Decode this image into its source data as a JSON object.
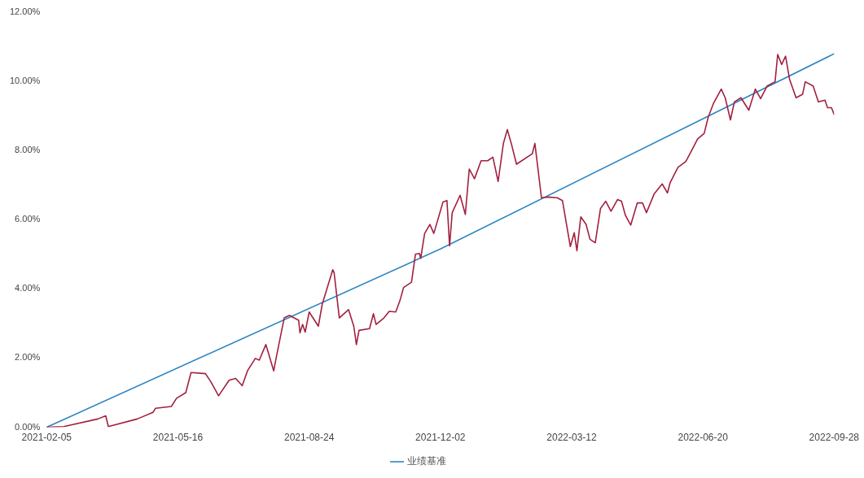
{
  "chart_data": {
    "type": "line",
    "legend": "bottom",
    "grid": false,
    "marker": "none",
    "line_style": "solid",
    "xlim": [
      "2021-02-05",
      "2022-09-28"
    ],
    "xticks": [
      "2021-02-05",
      "2021-05-16",
      "2021-08-24",
      "2021-12-02",
      "2022-03-12",
      "2022-06-20",
      "2022-09-28"
    ],
    "ylim": [
      0,
      12
    ],
    "yticks": [
      {
        "value": 0,
        "label": "0.00%"
      },
      {
        "value": 2,
        "label": "2.00%"
      },
      {
        "value": 4,
        "label": "4.00%"
      },
      {
        "value": 6,
        "label": "6.00%"
      },
      {
        "value": 8,
        "label": "8.00%"
      },
      {
        "value": 10,
        "label": "10.00%"
      },
      {
        "value": 12,
        "label": "12.00%"
      }
    ],
    "series": [
      {
        "color": "#a3203f",
        "x": [
          "2021-02-05",
          "2021-02-18",
          "2021-03-16",
          "2021-03-22",
          "2021-03-24",
          "2021-04-15",
          "2021-04-27",
          "2021-04-29",
          "2021-05-11",
          "2021-05-15",
          "2021-05-22",
          "2021-05-26",
          "2021-06-06",
          "2021-06-10",
          "2021-06-16",
          "2021-06-24",
          "2021-06-29",
          "2021-07-04",
          "2021-07-08",
          "2021-07-14",
          "2021-07-17",
          "2021-07-22",
          "2021-07-28",
          "2021-07-30",
          "2021-08-05",
          "2021-08-09",
          "2021-08-16",
          "2021-08-17",
          "2021-08-19",
          "2021-08-21",
          "2021-08-24",
          "2021-08-31",
          "2021-09-03",
          "2021-09-11",
          "2021-09-12",
          "2021-09-16",
          "2021-09-23",
          "2021-09-27",
          "2021-09-29",
          "2021-10-01",
          "2021-10-09",
          "2021-10-12",
          "2021-10-14",
          "2021-10-20",
          "2021-10-24",
          "2021-10-29",
          "2021-11-01",
          "2021-11-04",
          "2021-11-10",
          "2021-11-13",
          "2021-11-16",
          "2021-11-17",
          "2021-11-20",
          "2021-11-24",
          "2021-11-27",
          "2021-12-04",
          "2021-12-07",
          "2021-12-09",
          "2021-12-11",
          "2021-12-17",
          "2021-12-21",
          "2021-12-24",
          "2021-12-28",
          "2022-01-02",
          "2022-01-07",
          "2022-01-11",
          "2022-01-15",
          "2022-01-19",
          "2022-01-22",
          "2022-01-25",
          "2022-01-29",
          "2022-02-10",
          "2022-02-12",
          "2022-02-17",
          "2022-02-22",
          "2022-03-01",
          "2022-03-05",
          "2022-03-11",
          "2022-03-14",
          "2022-03-16",
          "2022-03-19",
          "2022-03-23",
          "2022-03-26",
          "2022-03-30",
          "2022-04-03",
          "2022-04-07",
          "2022-04-11",
          "2022-04-16",
          "2022-04-19",
          "2022-04-22",
          "2022-04-26",
          "2022-05-01",
          "2022-05-05",
          "2022-05-08",
          "2022-05-14",
          "2022-05-20",
          "2022-05-24",
          "2022-05-26",
          "2022-06-01",
          "2022-06-07",
          "2022-06-10",
          "2022-06-16",
          "2022-06-21",
          "2022-06-24",
          "2022-06-28",
          "2022-07-04",
          "2022-07-07",
          "2022-07-11",
          "2022-07-14",
          "2022-07-19",
          "2022-07-25",
          "2022-07-30",
          "2022-08-03",
          "2022-08-08",
          "2022-08-14",
          "2022-08-16",
          "2022-08-19",
          "2022-08-22",
          "2022-08-25",
          "2022-08-30",
          "2022-09-04",
          "2022-09-06",
          "2022-09-12",
          "2022-09-16",
          "2022-09-21",
          "2022-09-23",
          "2022-09-26",
          "2022-09-28"
        ],
        "values": [
          0,
          0.02,
          0.24,
          0.33,
          0.02,
          0.24,
          0.43,
          0.55,
          0.6,
          0.84,
          1.0,
          1.58,
          1.55,
          1.32,
          0.91,
          1.36,
          1.41,
          1.2,
          1.63,
          1.99,
          1.94,
          2.39,
          1.63,
          2.03,
          3.16,
          3.23,
          3.09,
          2.73,
          2.97,
          2.75,
          3.33,
          2.92,
          3.56,
          4.55,
          4.47,
          3.16,
          3.4,
          2.92,
          2.39,
          2.8,
          2.85,
          3.28,
          2.97,
          3.16,
          3.35,
          3.33,
          3.64,
          4.04,
          4.19,
          5.0,
          5.02,
          4.88,
          5.6,
          5.86,
          5.6,
          6.51,
          6.55,
          5.24,
          6.2,
          6.7,
          6.15,
          7.46,
          7.18,
          7.7,
          7.7,
          7.8,
          7.1,
          8.2,
          8.6,
          8.2,
          7.6,
          7.9,
          8.2,
          6.63,
          6.65,
          6.63,
          6.55,
          5.22,
          5.62,
          5.1,
          6.08,
          5.86,
          5.43,
          5.33,
          6.32,
          6.53,
          6.24,
          6.58,
          6.53,
          6.12,
          5.84,
          6.48,
          6.48,
          6.2,
          6.75,
          7.03,
          6.77,
          7.06,
          7.51,
          7.68,
          7.89,
          8.33,
          8.49,
          8.95,
          9.35,
          9.77,
          9.52,
          8.88,
          9.4,
          9.52,
          9.16,
          9.77,
          9.49,
          9.86,
          9.98,
          10.77,
          10.48,
          10.72,
          10.06,
          9.52,
          9.62,
          9.98,
          9.86,
          9.4,
          9.45,
          9.23,
          9.23,
          9.04
        ]
      },
      {
        "name": "业绩基准",
        "color": "#2e86c1",
        "x": [
          "2021-02-05",
          "2021-12-02",
          "2022-09-28"
        ],
        "values": [
          0,
          5.15,
          10.79
        ]
      }
    ]
  }
}
